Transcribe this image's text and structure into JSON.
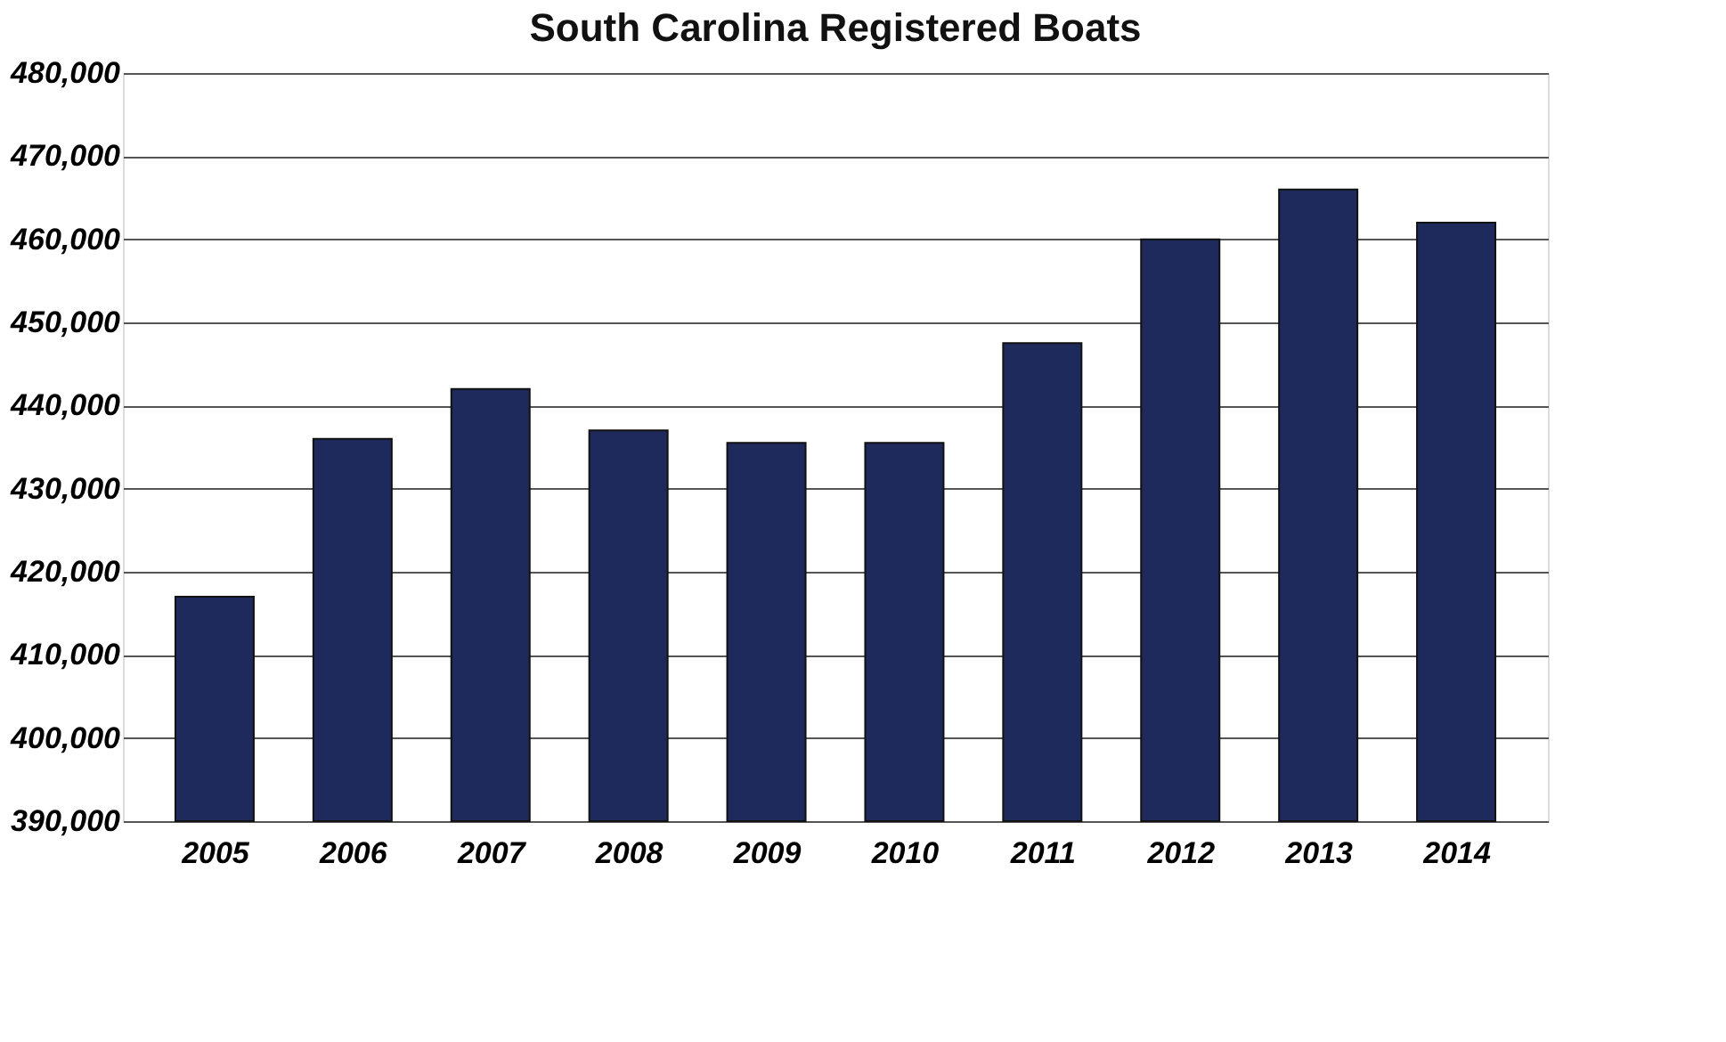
{
  "chart_data": {
    "type": "bar",
    "title": "South Carolina Registered Boats",
    "categories": [
      "2005",
      "2006",
      "2007",
      "2008",
      "2009",
      "2010",
      "2011",
      "2012",
      "2013",
      "2014"
    ],
    "values": [
      417000,
      436000,
      442000,
      437000,
      435500,
      435500,
      447500,
      460000,
      466000,
      462000
    ],
    "color": "#1f2a5c",
    "ylim": [
      390000,
      480000
    ],
    "yticks": [
      {
        "value": 390000,
        "label": "390,000"
      },
      {
        "value": 400000,
        "label": "400,000"
      },
      {
        "value": 410000,
        "label": "410,000"
      },
      {
        "value": 420000,
        "label": "420,000"
      },
      {
        "value": 430000,
        "label": "430,000"
      },
      {
        "value": 440000,
        "label": "440,000"
      },
      {
        "value": 450000,
        "label": "450,000"
      },
      {
        "value": 460000,
        "label": "460,000"
      },
      {
        "value": 470000,
        "label": "470,000"
      },
      {
        "value": 480000,
        "label": "480,000"
      }
    ],
    "grid": "y"
  }
}
